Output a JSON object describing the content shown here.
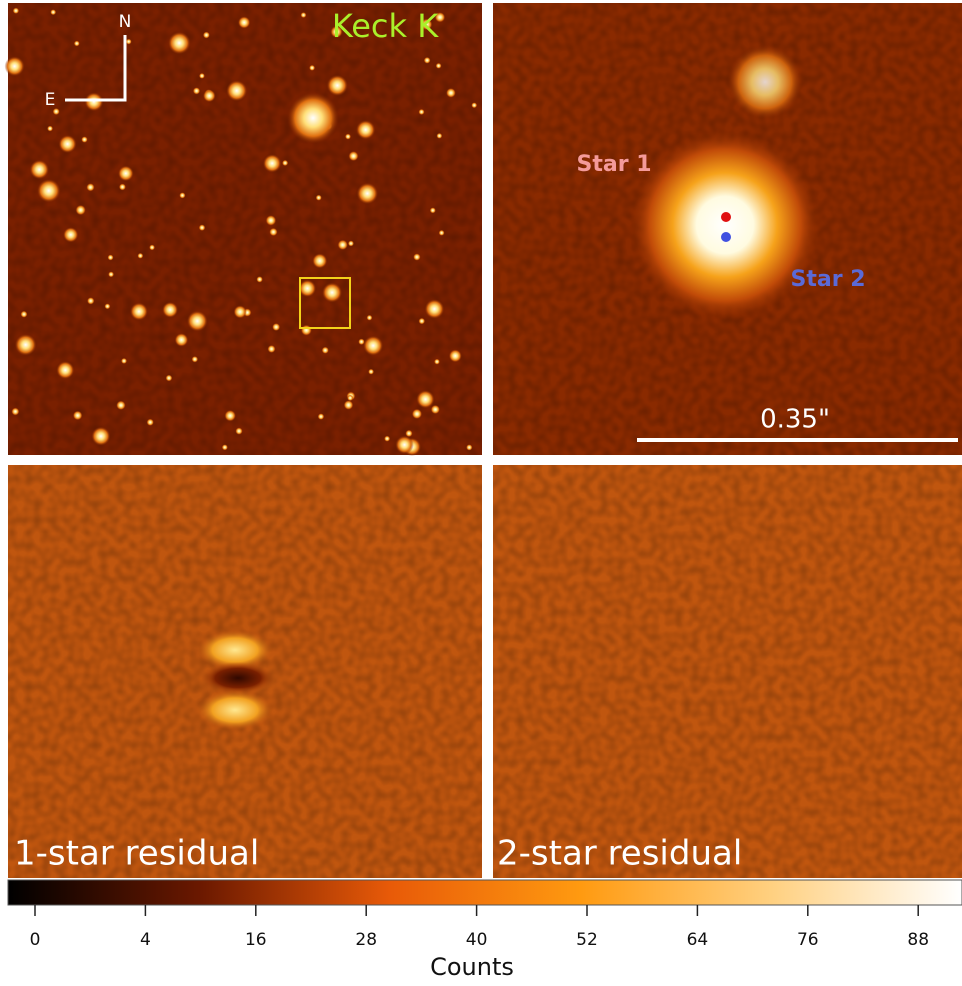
{
  "panels": [
    {
      "label": "Keck K",
      "compass": {
        "north": "N",
        "east": "E"
      }
    },
    {
      "star1": "Star 1",
      "star2": "Star 2",
      "scale_bar": "0.35\""
    },
    {
      "label": "1-star residual"
    },
    {
      "label": "2-star residual"
    }
  ],
  "colorbar": {
    "label": "Counts",
    "ticks": [
      0,
      4,
      16,
      28,
      40,
      52,
      64,
      76,
      88
    ]
  }
}
